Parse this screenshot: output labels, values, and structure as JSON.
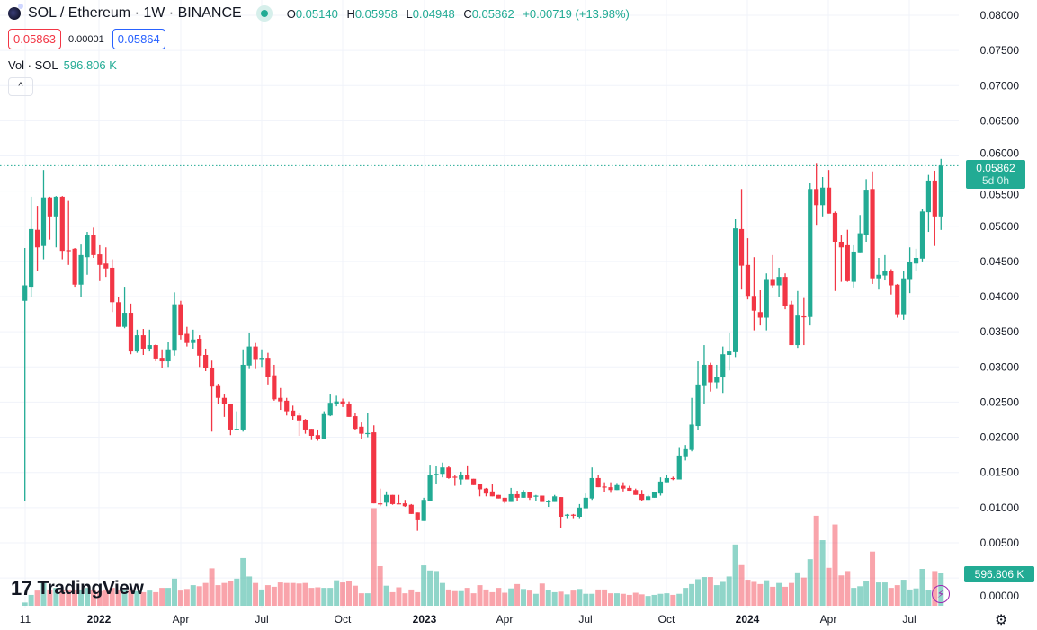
{
  "header": {
    "symbol": "SOL / Ethereum · 1W · BINANCE",
    "o_label": "O",
    "open": "0.05140",
    "h_label": "H",
    "high": "0.05958",
    "l_label": "L",
    "low": "0.04948",
    "c_label": "C",
    "close": "0.05862",
    "change": "+0.00719 (+13.98%)",
    "bid": "0.05863",
    "spread": "0.00001",
    "ask": "0.05864",
    "volume_label": "Vol · SOL",
    "volume_value": "596.806 K",
    "collapse_icon": "chevron-up-icon"
  },
  "price_axis": {
    "ticks": [
      "0.08000",
      "0.07500",
      "0.07000",
      "0.06500",
      "0.06000",
      "0.05500",
      "0.05000",
      "0.04500",
      "0.04000",
      "0.03500",
      "0.03000",
      "0.02500",
      "0.02000",
      "0.01500",
      "0.01000",
      "0.00500",
      "0.00000"
    ],
    "current_price": "0.05862",
    "countdown": "5d 0h",
    "volume_badge": "596.806 K"
  },
  "time_axis": {
    "ticks": [
      "11",
      "2022",
      "Apr",
      "Jul",
      "Oct",
      "2023",
      "Apr",
      "Jul",
      "Oct",
      "2024",
      "Apr",
      "Jul"
    ]
  },
  "branding": {
    "logo": "TradingView"
  },
  "colors": {
    "up": "#22ab94",
    "down": "#f23645",
    "bid": "#f23645",
    "ask": "#2962ff",
    "grid": "#f0f3fa"
  },
  "chart_data": {
    "type": "candlestick",
    "interval": "1W",
    "ylim": [
      0,
      0.08
    ],
    "grid": true,
    "ohlc": [
      [
        0.0394,
        0.0469,
        0.0109,
        0.0416
      ],
      [
        0.0414,
        0.0542,
        0.0399,
        0.0496
      ],
      [
        0.0495,
        0.0529,
        0.0436,
        0.047
      ],
      [
        0.0472,
        0.058,
        0.0453,
        0.0541
      ],
      [
        0.0541,
        0.0542,
        0.0481,
        0.0514
      ],
      [
        0.0514,
        0.0543,
        0.047,
        0.0542
      ],
      [
        0.0542,
        0.0543,
        0.0453,
        0.0465
      ],
      [
        0.0466,
        0.0536,
        0.0445,
        0.0465
      ],
      [
        0.0468,
        0.0469,
        0.0414,
        0.0417
      ],
      [
        0.0417,
        0.0474,
        0.0399,
        0.0459
      ],
      [
        0.0456,
        0.0492,
        0.0431,
        0.0487
      ],
      [
        0.0487,
        0.0498,
        0.0455,
        0.0459
      ],
      [
        0.046,
        0.0473,
        0.0422,
        0.0445
      ],
      [
        0.0447,
        0.047,
        0.0428,
        0.044
      ],
      [
        0.0441,
        0.0453,
        0.0378,
        0.0392
      ],
      [
        0.0392,
        0.04,
        0.0357,
        0.0357
      ],
      [
        0.0357,
        0.0414,
        0.0355,
        0.0377
      ],
      [
        0.0377,
        0.039,
        0.0318,
        0.0322
      ],
      [
        0.0322,
        0.0353,
        0.032,
        0.0345
      ],
      [
        0.0345,
        0.0354,
        0.0317,
        0.0326
      ],
      [
        0.0326,
        0.0353,
        0.0322,
        0.0331
      ],
      [
        0.0331,
        0.0332,
        0.0308,
        0.0312
      ],
      [
        0.0313,
        0.0325,
        0.0299,
        0.0308
      ],
      [
        0.0308,
        0.0336,
        0.03,
        0.0325
      ],
      [
        0.0323,
        0.0406,
        0.0316,
        0.0389
      ],
      [
        0.0389,
        0.0394,
        0.0339,
        0.0345
      ],
      [
        0.0347,
        0.0357,
        0.0329,
        0.0334
      ],
      [
        0.0334,
        0.0353,
        0.0326,
        0.0339
      ],
      [
        0.034,
        0.0345,
        0.03,
        0.0316
      ],
      [
        0.0317,
        0.0326,
        0.0294,
        0.0298
      ],
      [
        0.0299,
        0.0309,
        0.0208,
        0.0272
      ],
      [
        0.0274,
        0.0276,
        0.0248,
        0.0256
      ],
      [
        0.0256,
        0.0262,
        0.0229,
        0.0247
      ],
      [
        0.0248,
        0.0248,
        0.0203,
        0.0211
      ],
      [
        0.0211,
        0.0237,
        0.021,
        0.0212
      ],
      [
        0.0211,
        0.0325,
        0.0208,
        0.0303
      ],
      [
        0.0302,
        0.0349,
        0.0297,
        0.0329
      ],
      [
        0.0329,
        0.0334,
        0.0297,
        0.031
      ],
      [
        0.031,
        0.0325,
        0.03,
        0.0313
      ],
      [
        0.0313,
        0.032,
        0.0275,
        0.0286
      ],
      [
        0.0288,
        0.0303,
        0.0252,
        0.0254
      ],
      [
        0.0256,
        0.027,
        0.0239,
        0.0251
      ],
      [
        0.0252,
        0.0256,
        0.0231,
        0.0237
      ],
      [
        0.0238,
        0.0245,
        0.0225,
        0.023
      ],
      [
        0.0231,
        0.0235,
        0.0202,
        0.0224
      ],
      [
        0.0225,
        0.0226,
        0.0205,
        0.0211
      ],
      [
        0.0212,
        0.0212,
        0.0196,
        0.0202
      ],
      [
        0.0203,
        0.0211,
        0.0195,
        0.0197
      ],
      [
        0.0197,
        0.0237,
        0.0197,
        0.0233
      ],
      [
        0.0231,
        0.0262,
        0.023,
        0.0249
      ],
      [
        0.0248,
        0.0259,
        0.0244,
        0.0251
      ],
      [
        0.0251,
        0.0255,
        0.0243,
        0.0247
      ],
      [
        0.0248,
        0.0251,
        0.0229,
        0.0229
      ],
      [
        0.023,
        0.0234,
        0.021,
        0.0212
      ],
      [
        0.0215,
        0.0221,
        0.0198,
        0.0205
      ],
      [
        0.0205,
        0.0235,
        0.02,
        0.0206
      ],
      [
        0.0207,
        0.0217,
        0.0106,
        0.0106
      ],
      [
        0.0106,
        0.0127,
        0.0102,
        0.0105
      ],
      [
        0.0107,
        0.0123,
        0.0102,
        0.0118
      ],
      [
        0.0118,
        0.0118,
        0.0104,
        0.0105
      ],
      [
        0.0106,
        0.0118,
        0.0105,
        0.0105
      ],
      [
        0.0106,
        0.0111,
        0.0101,
        0.0102
      ],
      [
        0.0104,
        0.0105,
        0.0091,
        0.0091
      ],
      [
        0.0093,
        0.0093,
        0.0067,
        0.0082
      ],
      [
        0.0081,
        0.0114,
        0.0081,
        0.0111
      ],
      [
        0.011,
        0.0161,
        0.011,
        0.0147
      ],
      [
        0.0146,
        0.0159,
        0.0134,
        0.0148
      ],
      [
        0.0148,
        0.0164,
        0.0143,
        0.0157
      ],
      [
        0.0157,
        0.0159,
        0.0141,
        0.0142
      ],
      [
        0.0144,
        0.0146,
        0.0131,
        0.0143
      ],
      [
        0.014,
        0.0151,
        0.0132,
        0.0147
      ],
      [
        0.0147,
        0.016,
        0.014,
        0.014
      ],
      [
        0.0141,
        0.0141,
        0.0132,
        0.0132
      ],
      [
        0.0133,
        0.0134,
        0.0116,
        0.0126
      ],
      [
        0.0127,
        0.0128,
        0.0116,
        0.012
      ],
      [
        0.0123,
        0.0134,
        0.0116,
        0.0116
      ],
      [
        0.0118,
        0.0118,
        0.0113,
        0.0113
      ],
      [
        0.0114,
        0.0114,
        0.0106,
        0.0108
      ],
      [
        0.0108,
        0.0128,
        0.0108,
        0.0119
      ],
      [
        0.0119,
        0.0124,
        0.011,
        0.0114
      ],
      [
        0.0114,
        0.0125,
        0.0114,
        0.0122
      ],
      [
        0.0122,
        0.0122,
        0.0111,
        0.0114
      ],
      [
        0.0116,
        0.0118,
        0.011,
        0.0117
      ],
      [
        0.0117,
        0.0117,
        0.0108,
        0.0108
      ],
      [
        0.0108,
        0.0111,
        0.0101,
        0.0109
      ],
      [
        0.0108,
        0.0118,
        0.0108,
        0.0116
      ],
      [
        0.0115,
        0.0115,
        0.0071,
        0.0087
      ],
      [
        0.0089,
        0.0091,
        0.0085,
        0.009
      ],
      [
        0.009,
        0.0091,
        0.0085,
        0.0089
      ],
      [
        0.0087,
        0.0105,
        0.0085,
        0.01
      ],
      [
        0.0099,
        0.012,
        0.0099,
        0.0114
      ],
      [
        0.0113,
        0.0157,
        0.0111,
        0.0142
      ],
      [
        0.0142,
        0.0147,
        0.0129,
        0.0129
      ],
      [
        0.013,
        0.0136,
        0.0122,
        0.0129
      ],
      [
        0.0129,
        0.0136,
        0.0121,
        0.0125
      ],
      [
        0.0125,
        0.0135,
        0.0125,
        0.0132
      ],
      [
        0.0131,
        0.0136,
        0.0123,
        0.0127
      ],
      [
        0.0128,
        0.0131,
        0.0124,
        0.0124
      ],
      [
        0.0125,
        0.0127,
        0.0118,
        0.0118
      ],
      [
        0.0119,
        0.0125,
        0.011,
        0.0111
      ],
      [
        0.0111,
        0.0118,
        0.0111,
        0.0116
      ],
      [
        0.0114,
        0.0122,
        0.0114,
        0.0122
      ],
      [
        0.012,
        0.0143,
        0.0117,
        0.0137
      ],
      [
        0.0136,
        0.0147,
        0.0136,
        0.0142
      ],
      [
        0.0142,
        0.0144,
        0.0139,
        0.0141
      ],
      [
        0.014,
        0.0186,
        0.014,
        0.0174
      ],
      [
        0.0173,
        0.0189,
        0.0167,
        0.0183
      ],
      [
        0.0182,
        0.0256,
        0.018,
        0.0218
      ],
      [
        0.0216,
        0.0308,
        0.021,
        0.0275
      ],
      [
        0.0274,
        0.0331,
        0.0248,
        0.0303
      ],
      [
        0.0303,
        0.0306,
        0.0265,
        0.0278
      ],
      [
        0.0278,
        0.0303,
        0.0269,
        0.0286
      ],
      [
        0.0285,
        0.0329,
        0.0263,
        0.0318
      ],
      [
        0.0317,
        0.0349,
        0.0295,
        0.0322
      ],
      [
        0.0321,
        0.051,
        0.0314,
        0.0497
      ],
      [
        0.0496,
        0.0553,
        0.041,
        0.0444
      ],
      [
        0.0445,
        0.0483,
        0.0396,
        0.0401
      ],
      [
        0.0401,
        0.0456,
        0.0352,
        0.038
      ],
      [
        0.0378,
        0.0409,
        0.0359,
        0.037
      ],
      [
        0.037,
        0.0433,
        0.0352,
        0.0425
      ],
      [
        0.0425,
        0.0459,
        0.0413,
        0.0416
      ],
      [
        0.0416,
        0.0441,
        0.04,
        0.0428
      ],
      [
        0.0428,
        0.0433,
        0.0382,
        0.0387
      ],
      [
        0.0389,
        0.0394,
        0.0331,
        0.0331
      ],
      [
        0.0331,
        0.0408,
        0.0327,
        0.0373
      ],
      [
        0.0372,
        0.0398,
        0.0331,
        0.0371
      ],
      [
        0.0371,
        0.0561,
        0.0359,
        0.0553
      ],
      [
        0.0553,
        0.059,
        0.0502,
        0.053
      ],
      [
        0.053,
        0.057,
        0.0514,
        0.0555
      ],
      [
        0.0555,
        0.058,
        0.0518,
        0.0518
      ],
      [
        0.0519,
        0.0521,
        0.0408,
        0.0478
      ],
      [
        0.0478,
        0.0488,
        0.0421,
        0.047
      ],
      [
        0.0473,
        0.0495,
        0.0421,
        0.0422
      ],
      [
        0.0421,
        0.0473,
        0.0413,
        0.0464
      ],
      [
        0.0463,
        0.0516,
        0.0463,
        0.049
      ],
      [
        0.0488,
        0.0567,
        0.0478,
        0.0552
      ],
      [
        0.0553,
        0.0578,
        0.0418,
        0.0426
      ],
      [
        0.0426,
        0.0455,
        0.041,
        0.0431
      ],
      [
        0.043,
        0.0459,
        0.0423,
        0.0437
      ],
      [
        0.0437,
        0.0439,
        0.0403,
        0.0416
      ],
      [
        0.0417,
        0.0418,
        0.037,
        0.0375
      ],
      [
        0.0375,
        0.0436,
        0.0367,
        0.0426
      ],
      [
        0.0425,
        0.047,
        0.0405,
        0.0449
      ],
      [
        0.0447,
        0.0468,
        0.0436,
        0.0455
      ],
      [
        0.0454,
        0.0525,
        0.045,
        0.0521
      ],
      [
        0.052,
        0.0573,
        0.0492,
        0.0565
      ],
      [
        0.0565,
        0.0579,
        0.0472,
        0.0514
      ],
      [
        0.0514,
        0.05958,
        0.04948,
        0.05862
      ]
    ],
    "volume_k": [
      60,
      200,
      280,
      420,
      300,
      330,
      300,
      300,
      300,
      300,
      330,
      300,
      270,
      300,
      330,
      300,
      300,
      300,
      270,
      250,
      280,
      250,
      330,
      330,
      500,
      280,
      310,
      380,
      360,
      420,
      690,
      380,
      420,
      450,
      500,
      880,
      540,
      420,
      300,
      380,
      350,
      430,
      420,
      420,
      410,
      420,
      330,
      340,
      330,
      330,
      470,
      430,
      450,
      370,
      230,
      230,
      1800,
      730,
      370,
      250,
      340,
      230,
      300,
      250,
      745,
      650,
      640,
      420,
      300,
      270,
      270,
      330,
      230,
      380,
      300,
      250,
      330,
      240,
      320,
      400,
      310,
      280,
      220,
      410,
      290,
      250,
      260,
      210,
      280,
      310,
      220,
      220,
      300,
      300,
      230,
      230,
      220,
      200,
      240,
      210,
      180,
      200,
      220,
      230,
      200,
      220,
      330,
      400,
      490,
      530,
      530,
      380,
      440,
      540,
      1130,
      750,
      480,
      440,
      400,
      470,
      350,
      420,
      350,
      420,
      600,
      520,
      860,
      1660,
      1210,
      700,
      1500,
      560,
      640,
      330,
      360,
      460,
      1000,
      430,
      430,
      330,
      380,
      480,
      300,
      320,
      680,
      290,
      640,
      597
    ]
  }
}
